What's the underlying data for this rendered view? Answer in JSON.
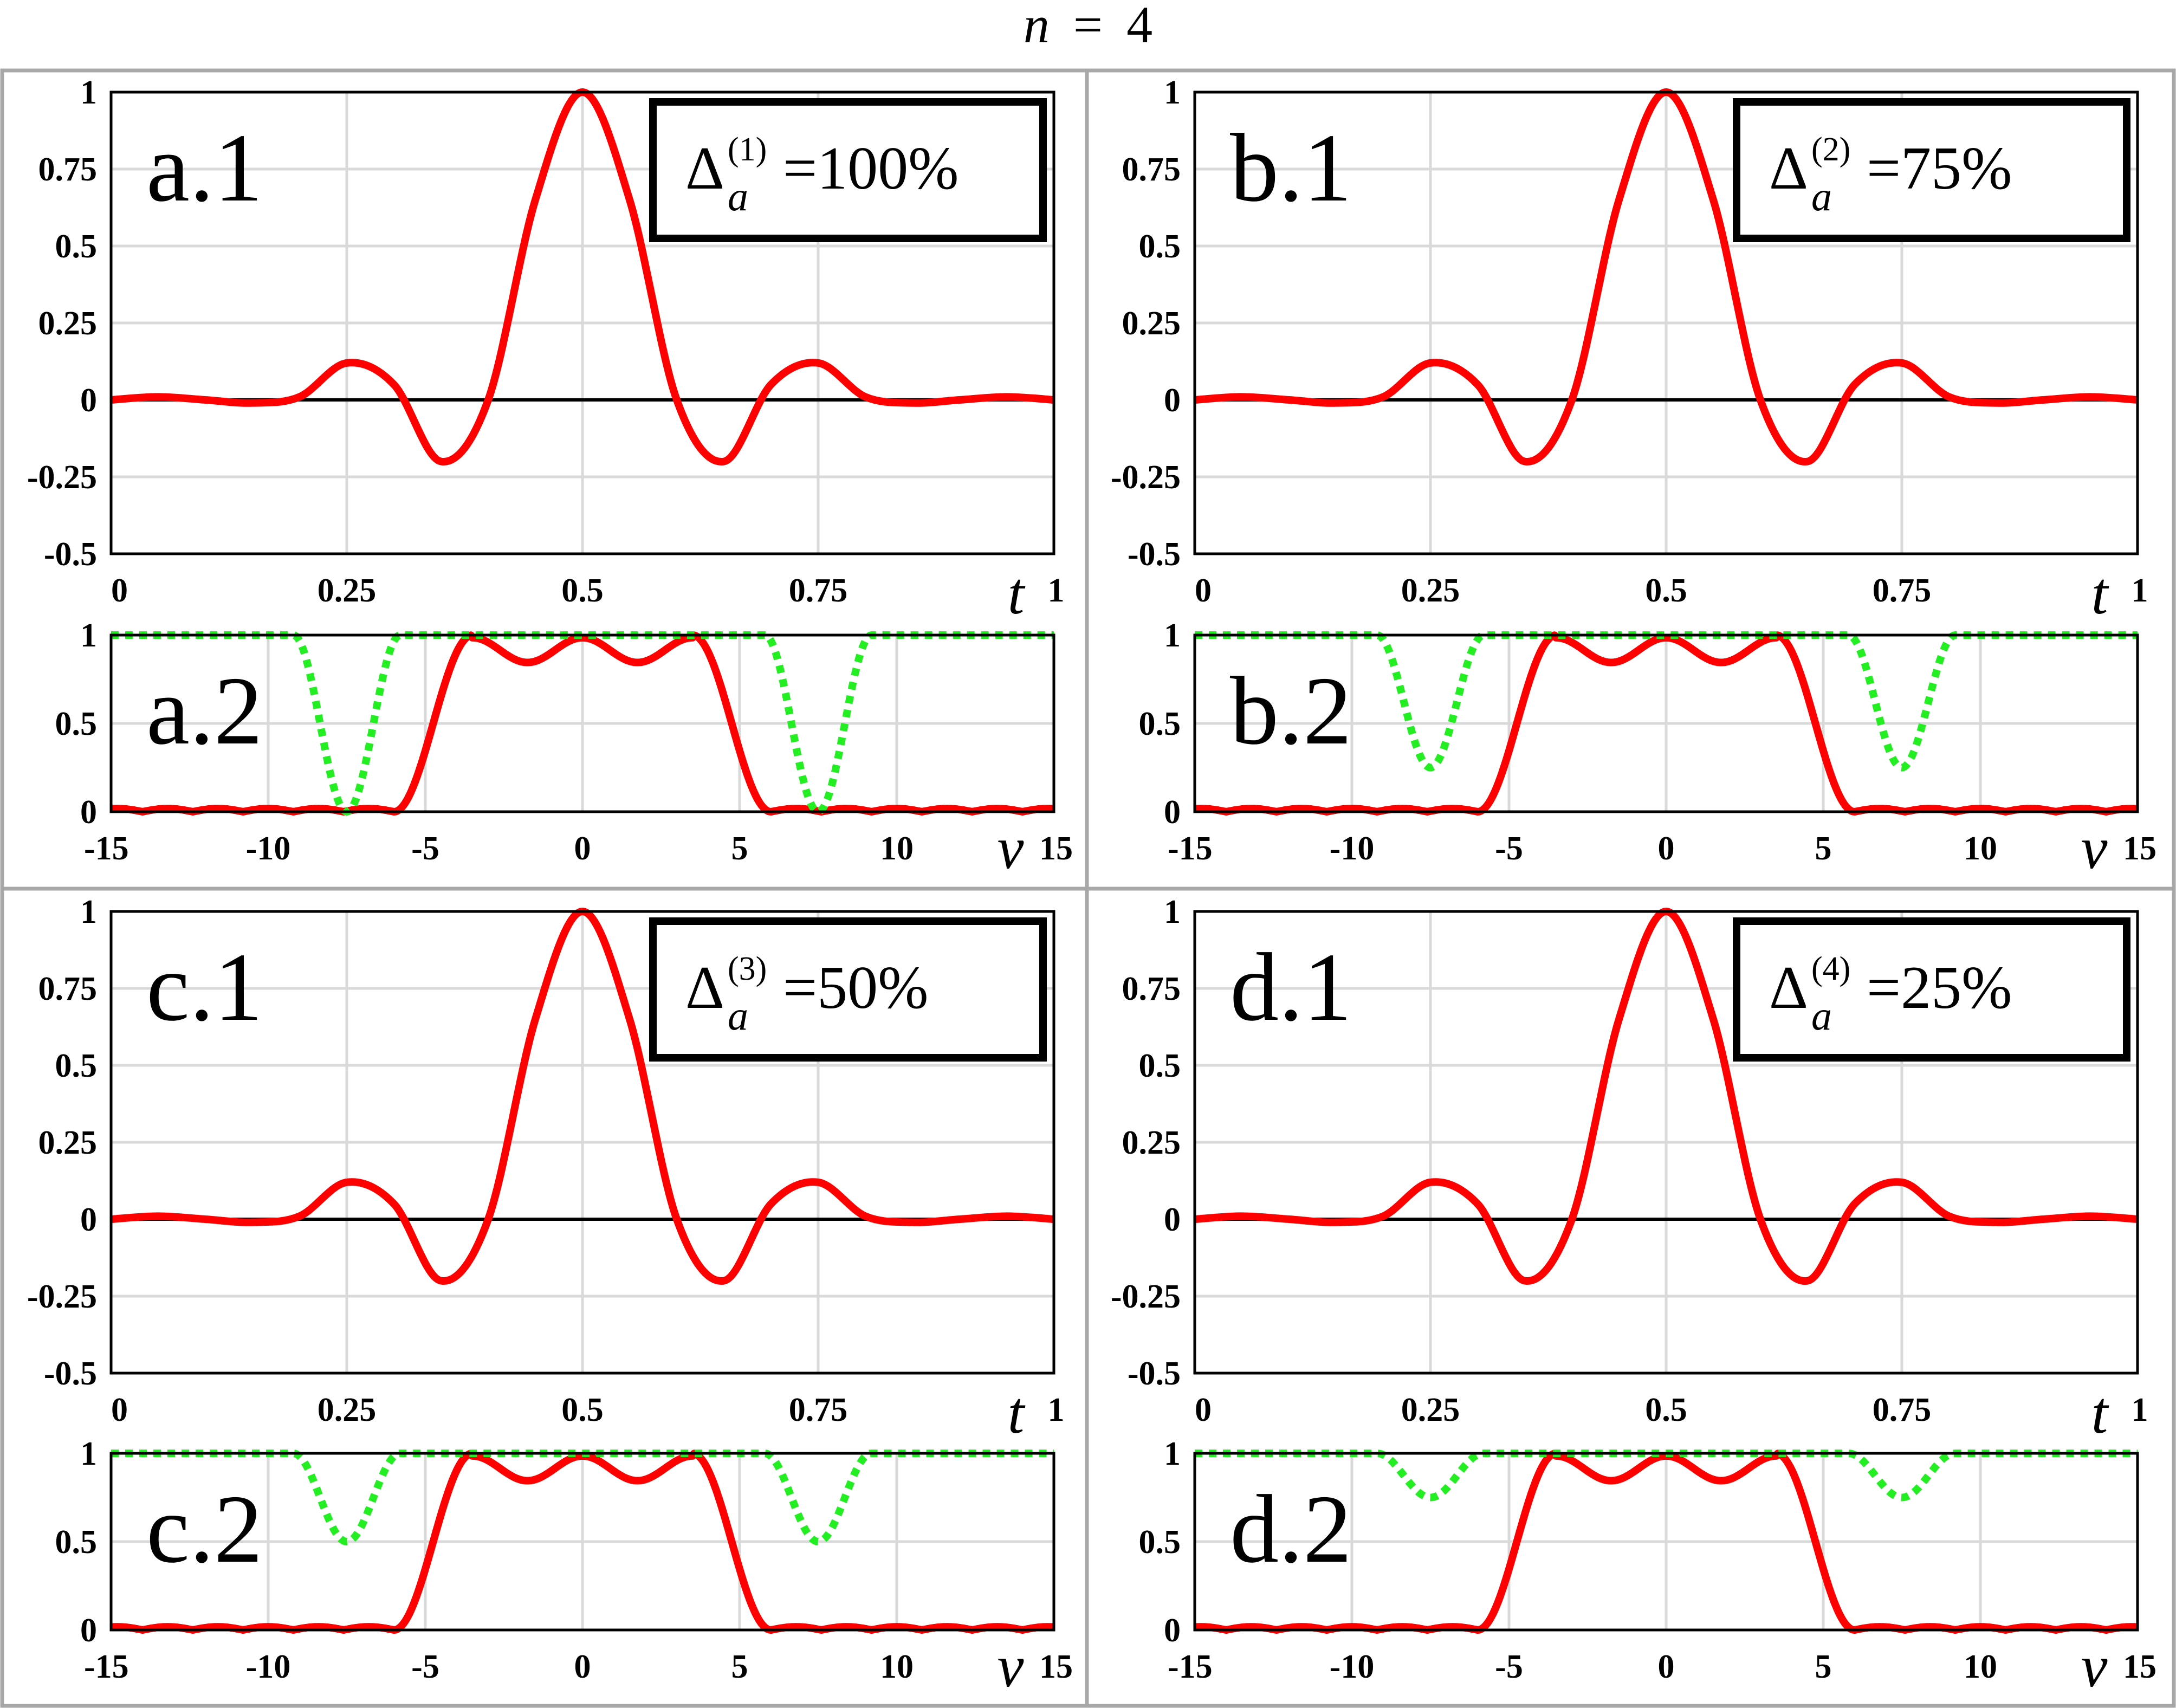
{
  "figure": {
    "title_var": "n",
    "title_eq": "=",
    "title_num": "4",
    "t_axis_label": "t",
    "nu_axis_label": "ν"
  },
  "colors": {
    "signal": "#ff0000",
    "spectrum_green": "#22ee22",
    "grid": "#d9d9d9",
    "axis": "#000000",
    "panel_border": "#a8a8a8",
    "background": "#ffffff"
  },
  "chart_data": [
    {
      "panel": "a",
      "label": "a.1",
      "type": "line",
      "box_base": "Δ",
      "box_sub": "a",
      "box_sup": "(1)",
      "box_value": "=100%",
      "xlim": [
        0,
        1
      ],
      "ylim": [
        -0.5,
        1
      ],
      "xticks": [
        "0",
        "0.25",
        "0.5",
        "0.75",
        "1"
      ],
      "yticks": [
        "-0.5",
        "-0.25",
        "0",
        "0.25",
        "0.5",
        "0.75",
        "1"
      ],
      "series": [
        {
          "x": [
            0,
            0.05,
            0.1,
            0.15,
            0.2,
            0.25,
            0.3,
            0.35,
            0.4,
            0.45,
            0.5,
            0.55,
            0.6,
            0.65,
            0.7,
            0.75,
            0.8,
            0.85,
            0.9,
            0.95,
            1
          ],
          "y": [
            0,
            0.01,
            0,
            -0.01,
            0.01,
            0.12,
            0.05,
            -0.2,
            0,
            0.65,
            1,
            0.65,
            0,
            -0.2,
            0.05,
            0.12,
            0.01,
            -0.01,
            0,
            0.01,
            0
          ]
        }
      ]
    },
    {
      "panel": "a",
      "label": "a.2",
      "type": "line",
      "xlim": [
        -15,
        15
      ],
      "ylim": [
        0,
        1
      ],
      "xticks": [
        "-15",
        "-10",
        "-5",
        "0",
        "5",
        "10",
        "15"
      ],
      "yticks": [
        "0",
        "0.5",
        "1"
      ],
      "dip_depth": 1.0,
      "dip_center": 7.5,
      "dip_halfwidth": 1.7
    },
    {
      "panel": "b",
      "label": "b.1",
      "type": "line",
      "box_base": "Δ",
      "box_sub": "a",
      "box_sup": "(2)",
      "box_value": "=75%",
      "xlim": [
        0,
        1
      ],
      "ylim": [
        -0.5,
        1
      ],
      "xticks": [
        "0",
        "0.25",
        "0.5",
        "0.75",
        "1"
      ],
      "yticks": [
        "-0.5",
        "-0.25",
        "0",
        "0.25",
        "0.5",
        "0.75",
        "1"
      ],
      "series": [
        {
          "x": [
            0,
            0.05,
            0.1,
            0.15,
            0.2,
            0.25,
            0.3,
            0.35,
            0.4,
            0.45,
            0.5,
            0.55,
            0.6,
            0.65,
            0.7,
            0.75,
            0.8,
            0.85,
            0.9,
            0.95,
            1
          ],
          "y": [
            0,
            0.01,
            0,
            -0.01,
            0.01,
            0.12,
            0.05,
            -0.2,
            0,
            0.65,
            1,
            0.65,
            0,
            -0.2,
            0.05,
            0.12,
            0.01,
            -0.01,
            0,
            0.01,
            0
          ]
        }
      ]
    },
    {
      "panel": "b",
      "label": "b.2",
      "type": "line",
      "xlim": [
        -15,
        15
      ],
      "ylim": [
        0,
        1
      ],
      "xticks": [
        "-15",
        "-10",
        "-5",
        "0",
        "5",
        "10",
        "15"
      ],
      "yticks": [
        "0",
        "0.5",
        "1"
      ],
      "dip_depth": 0.75,
      "dip_center": 7.5,
      "dip_halfwidth": 1.7
    },
    {
      "panel": "c",
      "label": "c.1",
      "type": "line",
      "box_base": "Δ",
      "box_sub": "a",
      "box_sup": "(3)",
      "box_value": "=50%",
      "xlim": [
        0,
        1
      ],
      "ylim": [
        -0.5,
        1
      ],
      "xticks": [
        "0",
        "0.25",
        "0.5",
        "0.75",
        "1"
      ],
      "yticks": [
        "-0.5",
        "-0.25",
        "0",
        "0.25",
        "0.5",
        "0.75",
        "1"
      ],
      "series": [
        {
          "x": [
            0,
            0.05,
            0.1,
            0.15,
            0.2,
            0.25,
            0.3,
            0.35,
            0.4,
            0.45,
            0.5,
            0.55,
            0.6,
            0.65,
            0.7,
            0.75,
            0.8,
            0.85,
            0.9,
            0.95,
            1
          ],
          "y": [
            0,
            0.01,
            0,
            -0.01,
            0.01,
            0.12,
            0.05,
            -0.2,
            0,
            0.65,
            1,
            0.65,
            0,
            -0.2,
            0.05,
            0.12,
            0.01,
            -0.01,
            0,
            0.01,
            0
          ]
        }
      ]
    },
    {
      "panel": "c",
      "label": "c.2",
      "type": "line",
      "xlim": [
        -15,
        15
      ],
      "ylim": [
        0,
        1
      ],
      "xticks": [
        "-15",
        "-10",
        "-5",
        "0",
        "5",
        "10",
        "15"
      ],
      "yticks": [
        "0",
        "0.5",
        "1"
      ],
      "dip_depth": 0.5,
      "dip_center": 7.5,
      "dip_halfwidth": 1.7
    },
    {
      "panel": "d",
      "label": "d.1",
      "type": "line",
      "box_base": "Δ",
      "box_sub": "a",
      "box_sup": "(4)",
      "box_value": "=25%",
      "xlim": [
        0,
        1
      ],
      "ylim": [
        -0.5,
        1
      ],
      "xticks": [
        "0",
        "0.25",
        "0.5",
        "0.75",
        "1"
      ],
      "yticks": [
        "-0.5",
        "-0.25",
        "0",
        "0.25",
        "0.5",
        "0.75",
        "1"
      ],
      "series": [
        {
          "x": [
            0,
            0.05,
            0.1,
            0.15,
            0.2,
            0.25,
            0.3,
            0.35,
            0.4,
            0.45,
            0.5,
            0.55,
            0.6,
            0.65,
            0.7,
            0.75,
            0.8,
            0.85,
            0.9,
            0.95,
            1
          ],
          "y": [
            0,
            0.01,
            0,
            -0.01,
            0.01,
            0.12,
            0.05,
            -0.2,
            0,
            0.65,
            1,
            0.65,
            0,
            -0.2,
            0.05,
            0.12,
            0.01,
            -0.01,
            0,
            0.01,
            0
          ]
        }
      ]
    },
    {
      "panel": "d",
      "label": "d.2",
      "type": "line",
      "xlim": [
        -15,
        15
      ],
      "ylim": [
        0,
        1
      ],
      "xticks": [
        "-15",
        "-10",
        "-5",
        "0",
        "5",
        "10",
        "15"
      ],
      "yticks": [
        "0",
        "0.5",
        "1"
      ],
      "dip_depth": 0.25,
      "dip_center": 7.5,
      "dip_halfwidth": 1.7
    }
  ]
}
